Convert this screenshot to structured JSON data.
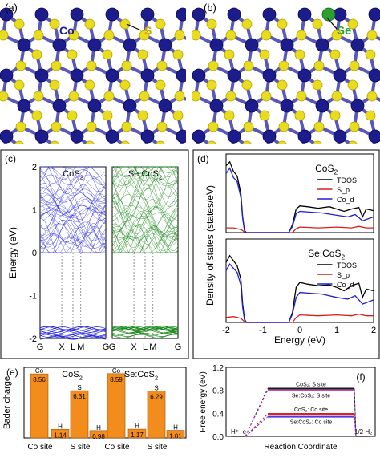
{
  "panels": {
    "a": "(a)",
    "b": "(b)",
    "c": "(c)",
    "d": "(d)",
    "e": "(e)",
    "f": "(f)"
  },
  "structure": {
    "a": {
      "co_label": "Co",
      "s_label": "S"
    },
    "b": {
      "se_label": "Se"
    },
    "colors": {
      "co": "#1c1c8c",
      "s": "#e8dc1c",
      "se": "#2ca02c"
    }
  },
  "chart_data": [
    {
      "type": "line",
      "panel": "c",
      "ylabel": "Energy (eV)",
      "ylim": [
        -2,
        2
      ],
      "yticks": [
        -2,
        -1,
        0,
        1,
        2
      ],
      "subplots": [
        {
          "title_main": "CoS",
          "title_sub": "2",
          "kpoints": [
            "G",
            "X",
            "L",
            "M",
            "G"
          ],
          "color": "#2a2ae0"
        },
        {
          "title_main": "Se:CoS",
          "title_sub": "2",
          "kpoints": [
            "G",
            "X",
            "L",
            "M",
            "G"
          ],
          "color": "#1a8a1a"
        }
      ]
    },
    {
      "type": "line",
      "panel": "d",
      "ylabel": "Density of states (states/eV)",
      "xlabel": "Energy (eV)",
      "xlim": [
        -2,
        2
      ],
      "xticks": [
        -2,
        -1,
        0,
        1,
        2
      ],
      "subplots": [
        {
          "title_main": "CoS",
          "title_sub": "2",
          "series": [
            {
              "name": "TDOS",
              "color": "#000000",
              "x": [
                -2.0,
                -1.9,
                -1.8,
                -1.7,
                -1.6,
                -1.55,
                -1.5,
                -1.45,
                -1.2,
                -0.3,
                -0.2,
                -0.1,
                0.0,
                0.2,
                0.5,
                0.8,
                1.0,
                1.2,
                1.4,
                1.6,
                1.7,
                1.8,
                2.0
              ],
              "y": [
                0.85,
                0.9,
                0.78,
                0.72,
                0.5,
                0.2,
                0.03,
                0.0,
                0.0,
                0.0,
                0.1,
                0.3,
                0.34,
                0.33,
                0.31,
                0.33,
                0.3,
                0.27,
                0.3,
                0.32,
                0.2,
                0.3,
                0.28
              ]
            },
            {
              "name": "S_p",
              "color": "#d62020",
              "x": [
                -2.0,
                -1.8,
                -1.6,
                -1.5,
                -1.45,
                -0.2,
                -0.1,
                0.0,
                0.5,
                1.0,
                1.4,
                1.6,
                1.8,
                2.0
              ],
              "y": [
                0.06,
                0.06,
                0.04,
                0.01,
                0.0,
                0.0,
                0.05,
                0.07,
                0.06,
                0.07,
                0.06,
                0.08,
                0.06,
                0.06
              ]
            },
            {
              "name": "Co_d",
              "color": "#2020d0",
              "x": [
                -2.0,
                -1.9,
                -1.8,
                -1.7,
                -1.6,
                -1.55,
                -1.5,
                -1.45,
                -0.3,
                -0.2,
                -0.1,
                0.0,
                0.3,
                0.6,
                1.0,
                1.3,
                1.5,
                1.7,
                2.0
              ],
              "y": [
                0.75,
                0.82,
                0.7,
                0.65,
                0.45,
                0.18,
                0.03,
                0.0,
                0.0,
                0.08,
                0.24,
                0.27,
                0.26,
                0.25,
                0.22,
                0.2,
                0.23,
                0.15,
                0.2
              ]
            }
          ]
        },
        {
          "title_main": "Se:CoS",
          "title_sub": "2",
          "series": [
            {
              "name": "TDOS",
              "color": "#000000",
              "x": [
                -2.0,
                -1.9,
                -1.8,
                -1.7,
                -1.6,
                -1.55,
                -1.5,
                -1.45,
                -1.2,
                -0.3,
                -0.2,
                -0.1,
                0.0,
                0.2,
                0.5,
                0.8,
                1.0,
                1.2,
                1.4,
                1.6,
                1.7,
                1.8,
                2.0
              ],
              "y": [
                0.72,
                0.8,
                0.74,
                0.68,
                0.52,
                0.22,
                0.04,
                0.0,
                0.0,
                0.0,
                0.12,
                0.42,
                0.48,
                0.46,
                0.44,
                0.45,
                0.42,
                0.38,
                0.44,
                0.47,
                0.3,
                0.4,
                0.38
              ]
            },
            {
              "name": "S_p",
              "color": "#d62020",
              "x": [
                -2.0,
                -1.8,
                -1.6,
                -1.5,
                -1.45,
                -0.2,
                -0.1,
                0.0,
                0.5,
                1.0,
                1.4,
                1.6,
                1.8,
                2.0
              ],
              "y": [
                0.06,
                0.07,
                0.05,
                0.01,
                0.0,
                0.0,
                0.06,
                0.09,
                0.08,
                0.09,
                0.08,
                0.1,
                0.08,
                0.08
              ]
            },
            {
              "name": "Co_d",
              "color": "#2020d0",
              "x": [
                -2.0,
                -1.9,
                -1.8,
                -1.7,
                -1.6,
                -1.55,
                -1.5,
                -1.45,
                -0.3,
                -0.2,
                -0.1,
                0.0,
                0.3,
                0.6,
                1.0,
                1.3,
                1.5,
                1.7,
                2.0
              ],
              "y": [
                0.62,
                0.7,
                0.65,
                0.6,
                0.45,
                0.18,
                0.03,
                0.0,
                0.0,
                0.1,
                0.3,
                0.36,
                0.35,
                0.34,
                0.3,
                0.28,
                0.32,
                0.22,
                0.27
              ]
            }
          ]
        }
      ]
    },
    {
      "type": "bar",
      "panel": "e",
      "ylabel": "Bader charge",
      "groups": [
        {
          "title_main": "CoS",
          "title_sub": "2",
          "sites": [
            "Co site",
            "S site"
          ]
        },
        {
          "title_main": "Se:CoS",
          "title_sub": "2",
          "sites": [
            "Co site",
            "S site"
          ]
        }
      ],
      "bars": [
        {
          "element": "Co",
          "value": 8.56,
          "label": "8.56"
        },
        {
          "element": "H",
          "value": 1.14,
          "label": "1.14"
        },
        {
          "element": "S",
          "value": 6.31,
          "label": "6.31"
        },
        {
          "element": "H",
          "value": 0.98,
          "label": "0.98"
        },
        {
          "element": "Co",
          "value": 8.59,
          "label": "8.59"
        },
        {
          "element": "H",
          "value": 1.17,
          "label": "1.17"
        },
        {
          "element": "S",
          "value": 6.29,
          "label": "6.29"
        },
        {
          "element": "H",
          "value": 1.01,
          "label": "1.01"
        }
      ],
      "ylim": [
        0,
        9
      ],
      "color": "#f28c1c"
    },
    {
      "type": "line",
      "panel": "f",
      "ylabel": "Free energy (eV)",
      "xlabel": "Reaction Coordinate",
      "ylim": [
        0,
        1.2
      ],
      "yticks": [
        0.0,
        0.4,
        0.8,
        1.2
      ],
      "start_label": "H⁺+e",
      "end_label": "1/2 H₂",
      "series": [
        {
          "name": "CoS₂: S site",
          "value": 0.83,
          "color": "#1a1a1a"
        },
        {
          "name": "Se:CoS₂: S site",
          "value": 0.8,
          "color": "#c04ac0"
        },
        {
          "name": "CoS₂: Co site",
          "value": 0.39,
          "color": "#e02020"
        },
        {
          "name": "Se:CoS₂: Co site",
          "value": 0.34,
          "color": "#4a3ce0"
        }
      ]
    }
  ]
}
